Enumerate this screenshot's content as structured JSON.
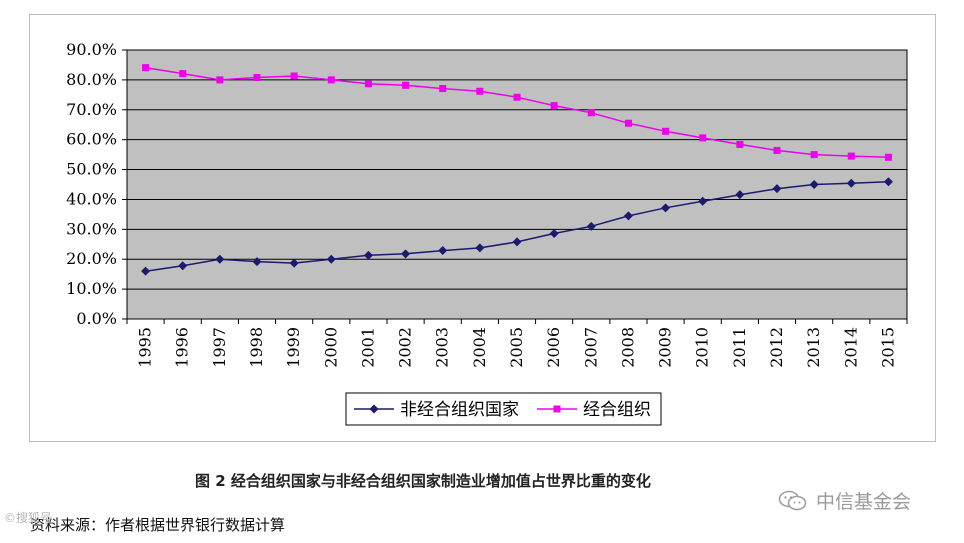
{
  "chart_data": {
    "type": "line",
    "categories": [
      "1995",
      "1996",
      "1997",
      "1998",
      "1999",
      "2000",
      "2001",
      "2002",
      "2003",
      "2004",
      "2005",
      "2006",
      "2007",
      "2008",
      "2009",
      "2010",
      "2011",
      "2012",
      "2013",
      "2014",
      "2015"
    ],
    "series": [
      {
        "name": "非经合组织国家",
        "color": "#1a1a6e",
        "marker": "diamond",
        "values": [
          16.0,
          17.8,
          20.0,
          19.2,
          18.7,
          20.0,
          21.3,
          21.8,
          22.9,
          23.8,
          25.8,
          28.6,
          31.0,
          34.5,
          37.2,
          39.4,
          41.6,
          43.6,
          45.0,
          45.4,
          45.9
        ]
      },
      {
        "name": "经合组织",
        "color": "#ee00ee",
        "marker": "square",
        "values": [
          84.1,
          82.1,
          80.0,
          80.8,
          81.3,
          80.0,
          78.7,
          78.2,
          77.1,
          76.2,
          74.2,
          71.4,
          69.0,
          65.5,
          62.8,
          60.6,
          58.4,
          56.4,
          55.0,
          54.5,
          54.1
        ]
      }
    ],
    "ylim": [
      0,
      90
    ],
    "y_ticks": [
      "0.0%",
      "10.0%",
      "20.0%",
      "30.0%",
      "40.0%",
      "50.0%",
      "60.0%",
      "70.0%",
      "80.0%",
      "90.0%"
    ],
    "grid": true,
    "plot_background": "#c0c0c0",
    "legend_position": "bottom-center",
    "title": "图 2  经合组织国家与非经合组织国家制造业增加值占世界比重的变化",
    "xlabel": "",
    "ylabel": ""
  },
  "caption": "图 2  经合组织国家与非经合组织国家制造业增加值占世界比重的变化",
  "source": "资料来源：作者根据世界银行数据计算",
  "watermark_brand": "中信基金会",
  "watermark_brand_icon": "wechat-icon",
  "watermark_left": "©搜狐号"
}
